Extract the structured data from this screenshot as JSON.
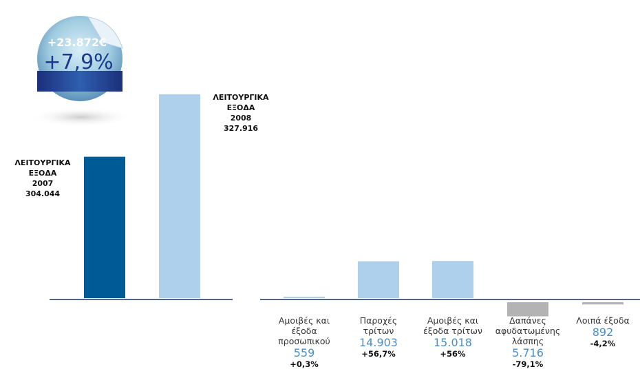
{
  "sticker": {
    "amount": "+23.872€",
    "percent": "+7,9%"
  },
  "chart_data": [
    {
      "type": "bar",
      "label": "ΛΕΙΤΟΥΡΓΙΚΑ ΕΞΟΔΑ",
      "categories": [
        "2007",
        "2008"
      ],
      "values": [
        304044,
        327916
      ],
      "value_labels": [
        "304.044",
        "327.916"
      ],
      "colors": [
        "#005a96",
        "#aed0ec"
      ],
      "ylim": [
        250000,
        330000
      ]
    },
    {
      "type": "bar",
      "categories": [
        "Αμοιβές και έξοδα προσωπικού",
        "Παροχές τρίτων",
        "Αμοιβές και έξοδα τρίτων",
        "Δαπάνες αφυδατωμένης λάσπης",
        "Λοιπά έξοδα"
      ],
      "values": [
        559,
        14903,
        15018,
        -5716,
        -892
      ],
      "value_labels": [
        "559",
        "14.903",
        "15.018",
        "5.716",
        "892"
      ],
      "changes": [
        "+0,3%",
        "+56,7%",
        "+56%",
        "-79,1%",
        "-4,2%"
      ],
      "colors": [
        "#aed0ec",
        "#aed0ec",
        "#aed0ec",
        "#b3b3b3",
        "#b3b3b3"
      ],
      "ylim": [
        -8000,
        70000
      ]
    }
  ]
}
